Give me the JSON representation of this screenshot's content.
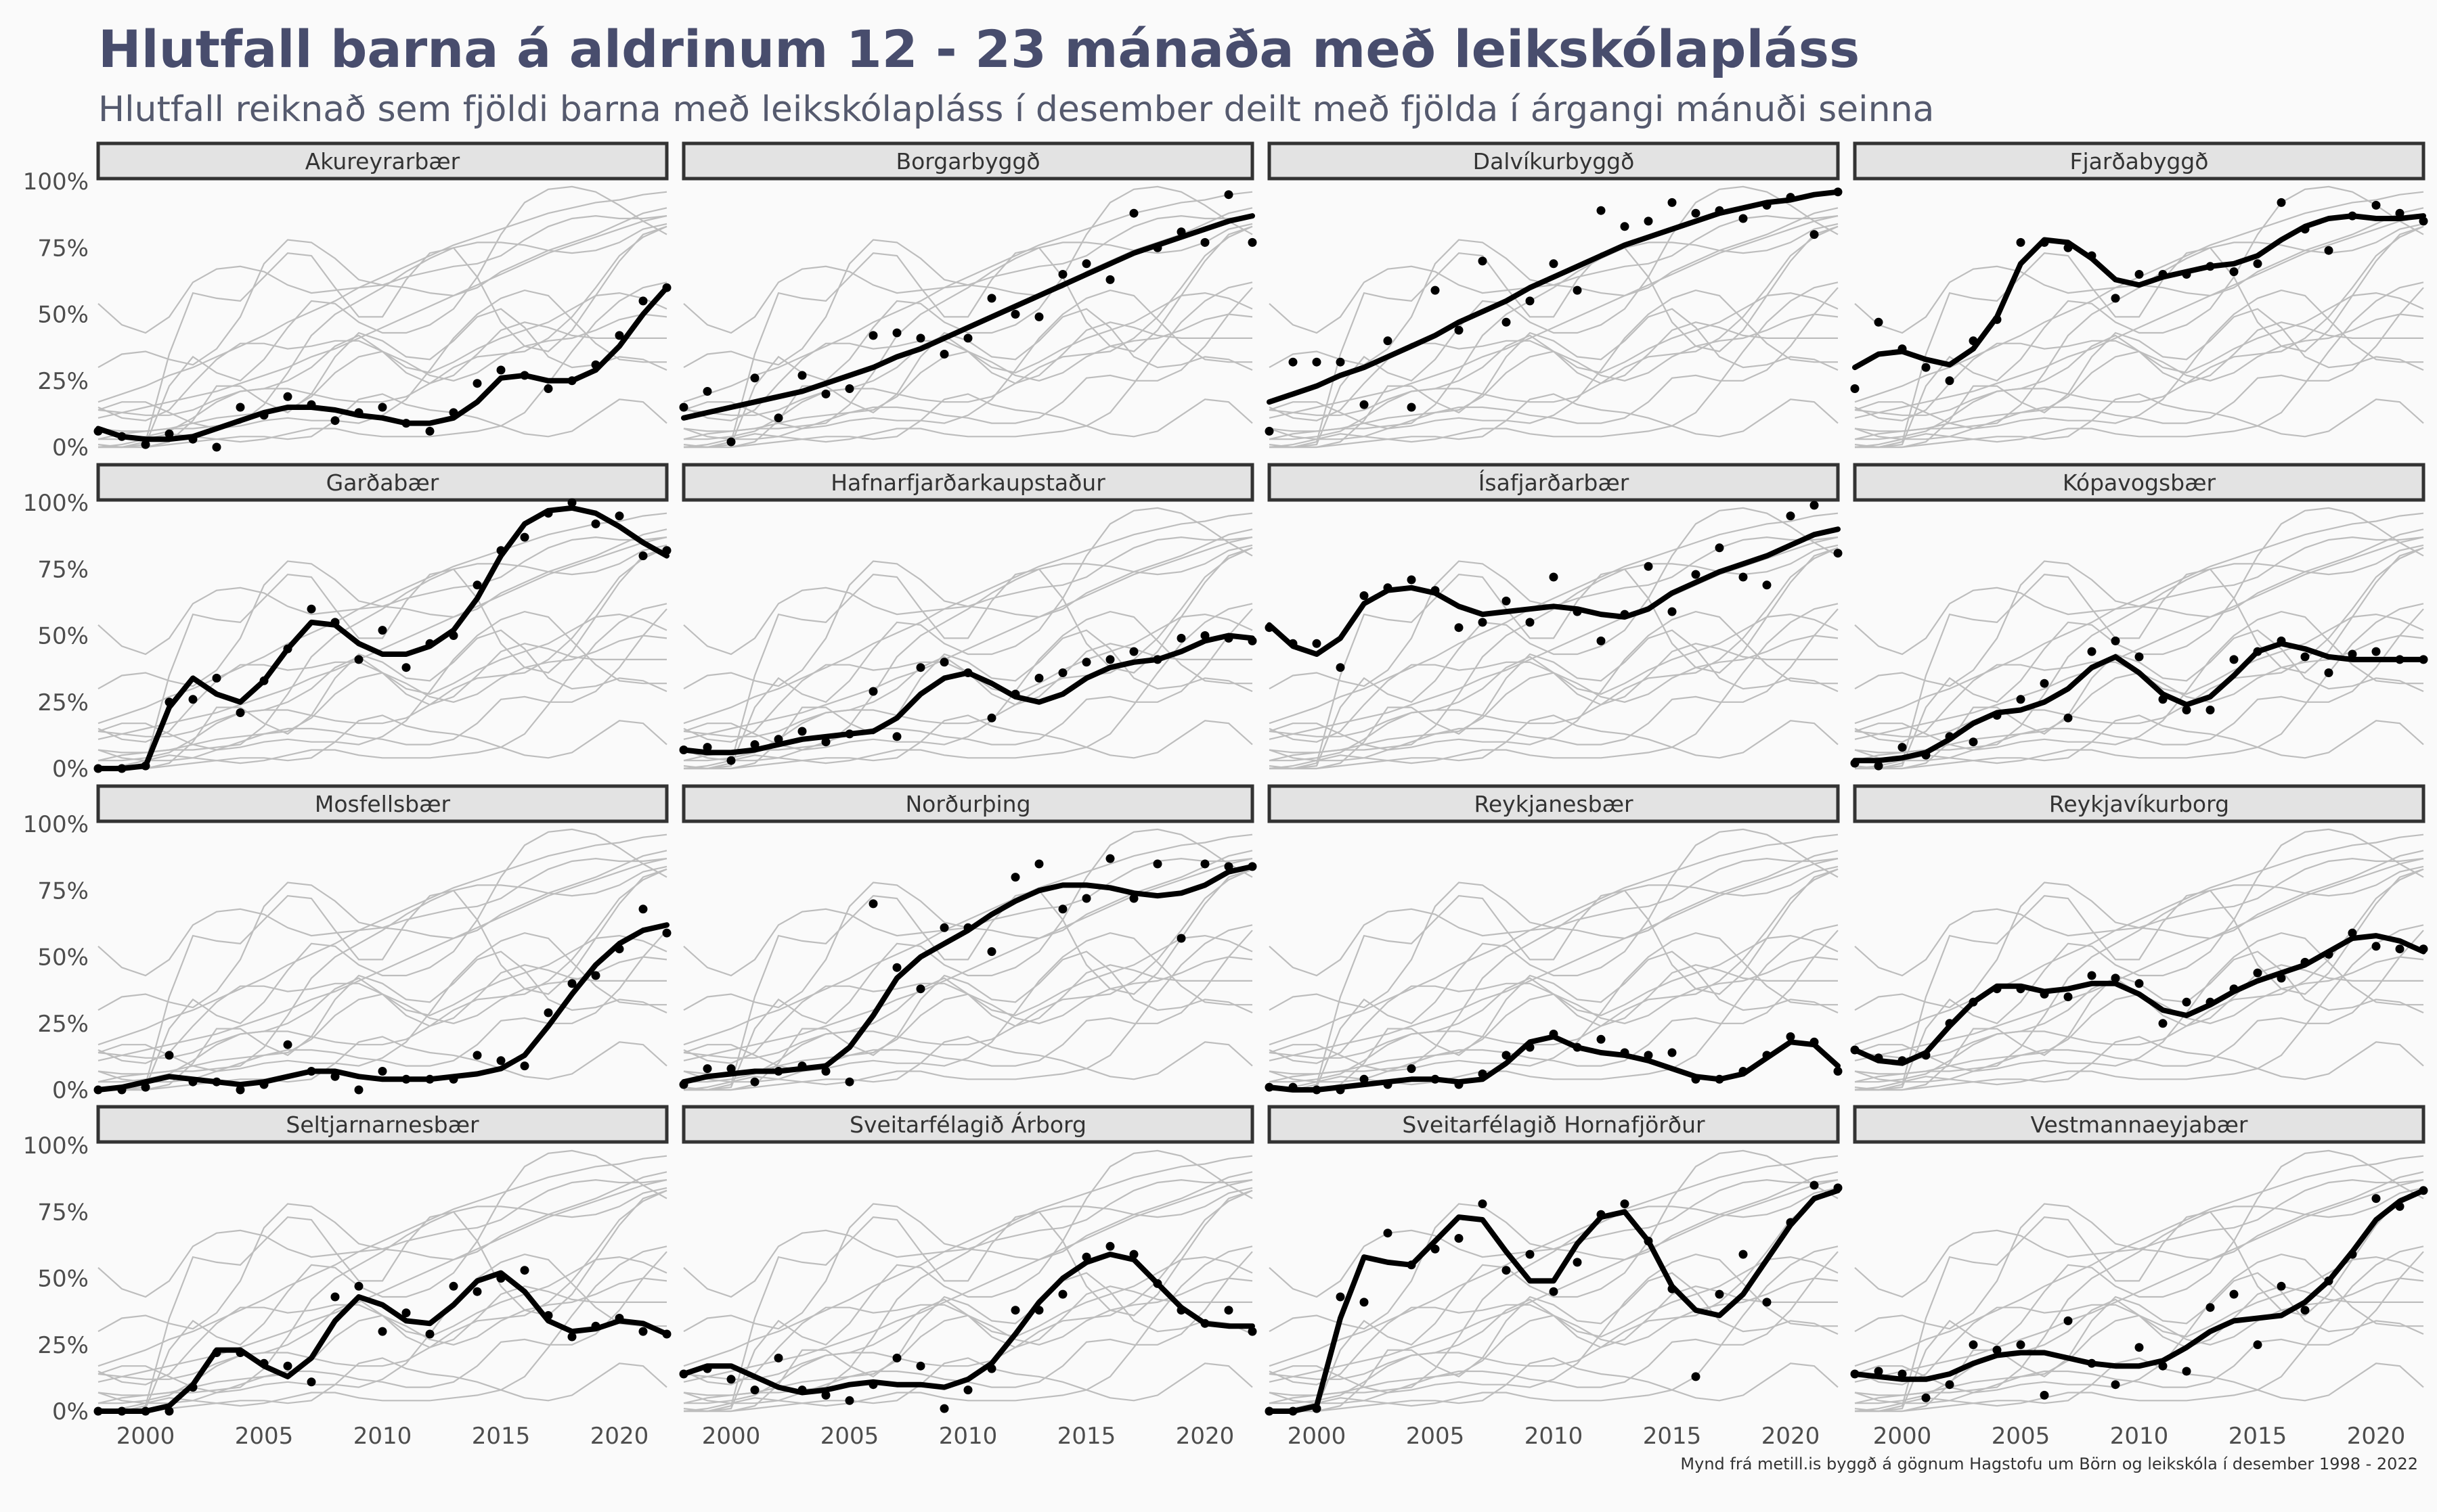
{
  "title": "Hlutfall barna á aldrinum 12 - 23 mánaða með leikskólapláss",
  "subtitle": "Hlutfall reiknað sem fjöldi barna með leikskólapláss í desember deilt með fjölda í árgangi mánuði seinna",
  "caption": "Mynd frá metill.is byggð á gögnum Hagstofu um Börn og leikskóla í desember 1998 - 2022",
  "colors": {
    "highlight": "#000000",
    "background_lines": "#bdbdbd",
    "strip_fill": "#e3e3e3",
    "strip_border": "#333333",
    "title": "#484d6d"
  },
  "chart_data": {
    "type": "line",
    "facet_layout": {
      "rows": 4,
      "cols": 4
    },
    "x_ticks": [
      2000,
      2005,
      2010,
      2015,
      2020
    ],
    "y_ticks": [
      0,
      0.25,
      0.5,
      0.75,
      1.0
    ],
    "y_tick_labels": [
      "0%",
      "25%",
      "50%",
      "75%",
      "100%"
    ],
    "xlim": [
      1998,
      2022
    ],
    "ylim": [
      0,
      1
    ],
    "grid": false,
    "years": [
      1998,
      1999,
      2000,
      2001,
      2002,
      2003,
      2004,
      2005,
      2006,
      2007,
      2008,
      2009,
      2010,
      2011,
      2012,
      2013,
      2014,
      2015,
      2016,
      2017,
      2018,
      2019,
      2020,
      2021,
      2022
    ],
    "panels": [
      {
        "name": "Akureyrarbær",
        "points": [
          0.06,
          0.04,
          0.01,
          0.05,
          0.03,
          0.0,
          0.15,
          0.12,
          0.19,
          0.16,
          0.1,
          0.13,
          0.15,
          0.09,
          0.06,
          0.13,
          0.24,
          0.29,
          0.27,
          0.22,
          0.25,
          0.31,
          0.42,
          0.55,
          0.6
        ],
        "trend": [
          0.07,
          0.04,
          0.03,
          0.03,
          0.04,
          0.07,
          0.1,
          0.13,
          0.15,
          0.15,
          0.14,
          0.12,
          0.11,
          0.09,
          0.09,
          0.11,
          0.17,
          0.26,
          0.27,
          0.25,
          0.25,
          0.29,
          0.38,
          0.5,
          0.6
        ]
      },
      {
        "name": "Borgarbyggð",
        "points": [
          0.15,
          0.21,
          0.02,
          0.26,
          0.11,
          0.27,
          0.2,
          0.22,
          0.42,
          0.43,
          0.41,
          0.35,
          0.41,
          0.56,
          0.5,
          0.49,
          0.65,
          0.69,
          0.63,
          0.88,
          0.75,
          0.81,
          0.77,
          0.95,
          0.77
        ],
        "trend": [
          0.11,
          0.13,
          0.15,
          0.17,
          0.19,
          0.21,
          0.24,
          0.27,
          0.3,
          0.34,
          0.37,
          0.41,
          0.45,
          0.49,
          0.53,
          0.57,
          0.61,
          0.65,
          0.69,
          0.73,
          0.76,
          0.79,
          0.82,
          0.85,
          0.87
        ]
      },
      {
        "name": "Dalvíkurbyggð",
        "points": [
          0.06,
          0.32,
          0.32,
          0.32,
          0.16,
          0.4,
          0.15,
          0.59,
          0.44,
          0.7,
          0.47,
          0.55,
          0.69,
          0.59,
          0.89,
          0.83,
          0.85,
          0.92,
          0.88,
          0.89,
          0.86,
          0.91,
          0.94,
          0.8,
          0.96
        ],
        "trend": [
          0.17,
          0.2,
          0.23,
          0.27,
          0.3,
          0.34,
          0.38,
          0.42,
          0.47,
          0.51,
          0.55,
          0.6,
          0.64,
          0.68,
          0.72,
          0.76,
          0.79,
          0.82,
          0.85,
          0.88,
          0.9,
          0.92,
          0.93,
          0.95,
          0.96
        ]
      },
      {
        "name": "Fjarðabyggð",
        "points": [
          0.22,
          0.47,
          0.37,
          0.3,
          0.25,
          0.4,
          0.48,
          0.77,
          0.77,
          0.75,
          0.72,
          0.56,
          0.65,
          0.65,
          0.65,
          0.68,
          0.66,
          0.69,
          0.92,
          0.82,
          0.74,
          0.87,
          0.91,
          0.88,
          0.85
        ],
        "trend": [
          0.3,
          0.35,
          0.36,
          0.33,
          0.31,
          0.37,
          0.49,
          0.69,
          0.78,
          0.77,
          0.71,
          0.63,
          0.61,
          0.64,
          0.66,
          0.68,
          0.69,
          0.72,
          0.78,
          0.83,
          0.86,
          0.87,
          0.86,
          0.86,
          0.87
        ]
      },
      {
        "name": "Garðabær",
        "points": [
          0.0,
          0.0,
          0.01,
          0.25,
          0.26,
          0.34,
          0.21,
          0.33,
          0.45,
          0.6,
          0.55,
          0.41,
          0.52,
          0.38,
          0.47,
          0.5,
          0.69,
          0.82,
          0.87,
          0.96,
          1.0,
          0.92,
          0.95,
          0.8,
          0.82
        ],
        "trend": [
          0.0,
          0.0,
          0.01,
          0.23,
          0.34,
          0.28,
          0.25,
          0.33,
          0.45,
          0.55,
          0.54,
          0.47,
          0.43,
          0.43,
          0.46,
          0.52,
          0.64,
          0.8,
          0.92,
          0.97,
          0.98,
          0.96,
          0.91,
          0.85,
          0.8
        ]
      },
      {
        "name": "Hafnarfjarðarkaupstaður",
        "points": [
          0.07,
          0.08,
          0.03,
          0.09,
          0.11,
          0.14,
          0.1,
          0.13,
          0.29,
          0.12,
          0.38,
          0.4,
          0.36,
          0.19,
          0.28,
          0.34,
          0.36,
          0.4,
          0.41,
          0.44,
          0.41,
          0.49,
          0.5,
          0.49,
          0.48
        ],
        "trend": [
          0.07,
          0.06,
          0.06,
          0.07,
          0.09,
          0.11,
          0.12,
          0.13,
          0.14,
          0.19,
          0.28,
          0.34,
          0.36,
          0.32,
          0.27,
          0.25,
          0.28,
          0.34,
          0.38,
          0.4,
          0.41,
          0.44,
          0.48,
          0.5,
          0.49
        ]
      },
      {
        "name": "Ísafjarðarbær",
        "points": [
          0.53,
          0.47,
          0.47,
          0.38,
          0.65,
          0.68,
          0.71,
          0.67,
          0.53,
          0.55,
          0.63,
          0.55,
          0.72,
          0.59,
          0.48,
          0.58,
          0.76,
          0.59,
          0.73,
          0.83,
          0.72,
          0.69,
          0.95,
          0.99,
          0.81
        ],
        "trend": [
          0.54,
          0.46,
          0.43,
          0.49,
          0.62,
          0.67,
          0.68,
          0.66,
          0.61,
          0.58,
          0.59,
          0.6,
          0.61,
          0.6,
          0.58,
          0.57,
          0.6,
          0.66,
          0.7,
          0.74,
          0.77,
          0.8,
          0.84,
          0.88,
          0.9
        ]
      },
      {
        "name": "Kópavogsbær",
        "points": [
          0.02,
          0.01,
          0.08,
          0.05,
          0.12,
          0.1,
          0.2,
          0.26,
          0.32,
          0.19,
          0.44,
          0.48,
          0.42,
          0.26,
          0.22,
          0.22,
          0.41,
          0.44,
          0.48,
          0.42,
          0.36,
          0.43,
          0.44,
          0.41,
          0.41
        ],
        "trend": [
          0.03,
          0.03,
          0.04,
          0.06,
          0.11,
          0.17,
          0.21,
          0.22,
          0.25,
          0.3,
          0.38,
          0.42,
          0.36,
          0.28,
          0.24,
          0.27,
          0.35,
          0.44,
          0.47,
          0.45,
          0.42,
          0.41,
          0.41,
          0.41,
          0.41
        ]
      },
      {
        "name": "Mosfellsbær",
        "points": [
          0.0,
          0.0,
          0.01,
          0.13,
          0.03,
          0.03,
          0.0,
          0.02,
          0.17,
          0.07,
          0.05,
          0.0,
          0.07,
          0.04,
          0.04,
          0.04,
          0.13,
          0.11,
          0.09,
          0.29,
          0.4,
          0.43,
          0.53,
          0.68,
          0.59
        ],
        "trend": [
          0.0,
          0.01,
          0.03,
          0.05,
          0.04,
          0.03,
          0.02,
          0.03,
          0.05,
          0.07,
          0.07,
          0.05,
          0.04,
          0.04,
          0.04,
          0.05,
          0.06,
          0.08,
          0.13,
          0.24,
          0.36,
          0.47,
          0.55,
          0.6,
          0.62
        ]
      },
      {
        "name": "Norðurþing",
        "points": [
          0.02,
          0.08,
          0.08,
          0.03,
          0.07,
          0.09,
          0.07,
          0.03,
          0.7,
          0.46,
          0.38,
          0.61,
          0.61,
          0.52,
          0.8,
          0.85,
          0.68,
          0.72,
          0.87,
          0.72,
          0.85,
          0.57,
          0.85,
          0.84,
          0.84
        ],
        "trend": [
          0.03,
          0.05,
          0.06,
          0.07,
          0.07,
          0.08,
          0.09,
          0.16,
          0.28,
          0.42,
          0.5,
          0.55,
          0.6,
          0.66,
          0.71,
          0.75,
          0.77,
          0.77,
          0.76,
          0.74,
          0.73,
          0.74,
          0.77,
          0.82,
          0.84
        ]
      },
      {
        "name": "Reykjanesbær",
        "points": [
          0.01,
          0.01,
          0.0,
          0.0,
          0.04,
          0.02,
          0.08,
          0.04,
          0.02,
          0.06,
          0.13,
          0.16,
          0.21,
          0.16,
          0.19,
          0.14,
          0.13,
          0.14,
          0.04,
          0.04,
          0.07,
          0.13,
          0.2,
          0.18,
          0.07
        ],
        "trend": [
          0.01,
          0.0,
          0.0,
          0.01,
          0.02,
          0.03,
          0.04,
          0.04,
          0.03,
          0.04,
          0.1,
          0.18,
          0.2,
          0.16,
          0.14,
          0.13,
          0.11,
          0.08,
          0.05,
          0.04,
          0.06,
          0.12,
          0.18,
          0.17,
          0.09
        ]
      },
      {
        "name": "Reykjavíkurborg",
        "points": [
          0.15,
          0.12,
          0.11,
          0.13,
          0.25,
          0.33,
          0.38,
          0.38,
          0.36,
          0.35,
          0.43,
          0.42,
          0.4,
          0.25,
          0.33,
          0.33,
          0.38,
          0.44,
          0.42,
          0.48,
          0.51,
          0.59,
          0.54,
          0.53,
          0.53
        ],
        "trend": [
          0.15,
          0.11,
          0.1,
          0.14,
          0.24,
          0.33,
          0.39,
          0.39,
          0.37,
          0.38,
          0.4,
          0.4,
          0.36,
          0.3,
          0.28,
          0.32,
          0.37,
          0.41,
          0.44,
          0.47,
          0.52,
          0.57,
          0.58,
          0.56,
          0.52
        ]
      },
      {
        "name": "Seltjarnarnesbær",
        "points": [
          0.0,
          0.0,
          0.0,
          0.0,
          0.09,
          0.22,
          0.22,
          0.18,
          0.17,
          0.11,
          0.43,
          0.47,
          0.3,
          0.37,
          0.29,
          0.47,
          0.45,
          0.5,
          0.53,
          0.36,
          0.28,
          0.32,
          0.35,
          0.3,
          0.29
        ],
        "trend": [
          0.0,
          0.0,
          0.0,
          0.02,
          0.1,
          0.23,
          0.23,
          0.17,
          0.13,
          0.2,
          0.34,
          0.43,
          0.4,
          0.34,
          0.33,
          0.4,
          0.49,
          0.52,
          0.45,
          0.34,
          0.3,
          0.31,
          0.34,
          0.33,
          0.29
        ]
      },
      {
        "name": "Sveitarfélagið Árborg",
        "points": [
          0.14,
          0.16,
          0.12,
          0.08,
          0.2,
          0.08,
          0.06,
          0.04,
          0.1,
          0.2,
          0.17,
          0.01,
          0.08,
          0.16,
          0.38,
          0.38,
          0.44,
          0.58,
          0.62,
          0.59,
          0.48,
          0.38,
          0.33,
          0.38,
          0.3
        ],
        "trend": [
          0.14,
          0.17,
          0.17,
          0.13,
          0.09,
          0.07,
          0.08,
          0.1,
          0.11,
          0.1,
          0.1,
          0.09,
          0.12,
          0.18,
          0.29,
          0.41,
          0.5,
          0.56,
          0.59,
          0.57,
          0.48,
          0.39,
          0.33,
          0.32,
          0.32
        ]
      },
      {
        "name": "Sveitarfélagið Hornafjörður",
        "points": [
          0.0,
          0.0,
          0.01,
          0.43,
          0.41,
          0.67,
          0.55,
          0.61,
          0.65,
          0.78,
          0.53,
          0.59,
          0.45,
          0.56,
          0.74,
          0.78,
          0.64,
          0.46,
          0.13,
          0.44,
          0.59,
          0.41,
          0.71,
          0.85,
          0.84
        ],
        "trend": [
          0.0,
          0.0,
          0.02,
          0.35,
          0.58,
          0.56,
          0.55,
          0.64,
          0.73,
          0.72,
          0.6,
          0.49,
          0.49,
          0.63,
          0.73,
          0.75,
          0.64,
          0.47,
          0.38,
          0.36,
          0.44,
          0.57,
          0.7,
          0.8,
          0.83
        ]
      },
      {
        "name": "Vestmannaeyjabær",
        "points": [
          0.14,
          0.15,
          0.14,
          0.05,
          0.1,
          0.25,
          0.23,
          0.25,
          0.06,
          0.34,
          0.18,
          0.1,
          0.24,
          0.17,
          0.15,
          0.39,
          0.44,
          0.25,
          0.47,
          0.38,
          0.49,
          0.59,
          0.8,
          0.77,
          0.83
        ],
        "trend": [
          0.14,
          0.13,
          0.12,
          0.12,
          0.14,
          0.18,
          0.21,
          0.22,
          0.22,
          0.2,
          0.18,
          0.17,
          0.17,
          0.19,
          0.24,
          0.3,
          0.34,
          0.35,
          0.36,
          0.41,
          0.49,
          0.6,
          0.72,
          0.79,
          0.83
        ]
      }
    ]
  }
}
